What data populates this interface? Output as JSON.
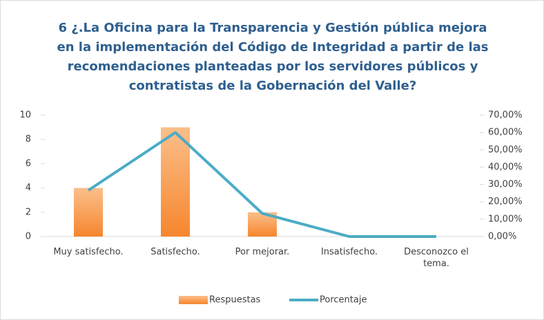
{
  "chart_data": {
    "type": "combo",
    "title": "6 ¿.La Oficina para la Transparencia y Gestión pública mejora en la implementación del Código de Integridad a partir de las recomendaciones planteadas por los servidores públicos y contratistas de la Gobernación del Valle?",
    "categories": [
      "Muy satisfecho.",
      "Satisfecho.",
      "Por mejorar.",
      "Insatisfecho.",
      "Desconozco el tema."
    ],
    "series": [
      {
        "name": "Respuestas",
        "type": "bar",
        "color": "#f79646",
        "values": [
          4,
          9,
          2,
          0,
          0
        ]
      },
      {
        "name": "Porcentaje",
        "type": "line",
        "axis": "y2",
        "color": "#4bacc6",
        "values": [
          26.67,
          60,
          13.33,
          0,
          0
        ]
      }
    ],
    "ylim": [
      0,
      10
    ],
    "yticks": [
      0,
      2,
      4,
      6,
      8,
      10
    ],
    "y2lim": [
      0,
      70
    ],
    "y2ticks": [
      {
        "value": 0,
        "label": "0,00%"
      },
      {
        "value": 10,
        "label": "10,00%"
      },
      {
        "value": 20,
        "label": "20,00%"
      },
      {
        "value": 30,
        "label": "30,00%"
      },
      {
        "value": 40,
        "label": "40,00%"
      },
      {
        "value": 50,
        "label": "50,00%"
      },
      {
        "value": 60,
        "label": "60,00%"
      },
      {
        "value": 70,
        "label": "70,00%"
      }
    ],
    "grid": false,
    "legend": "bottom"
  }
}
